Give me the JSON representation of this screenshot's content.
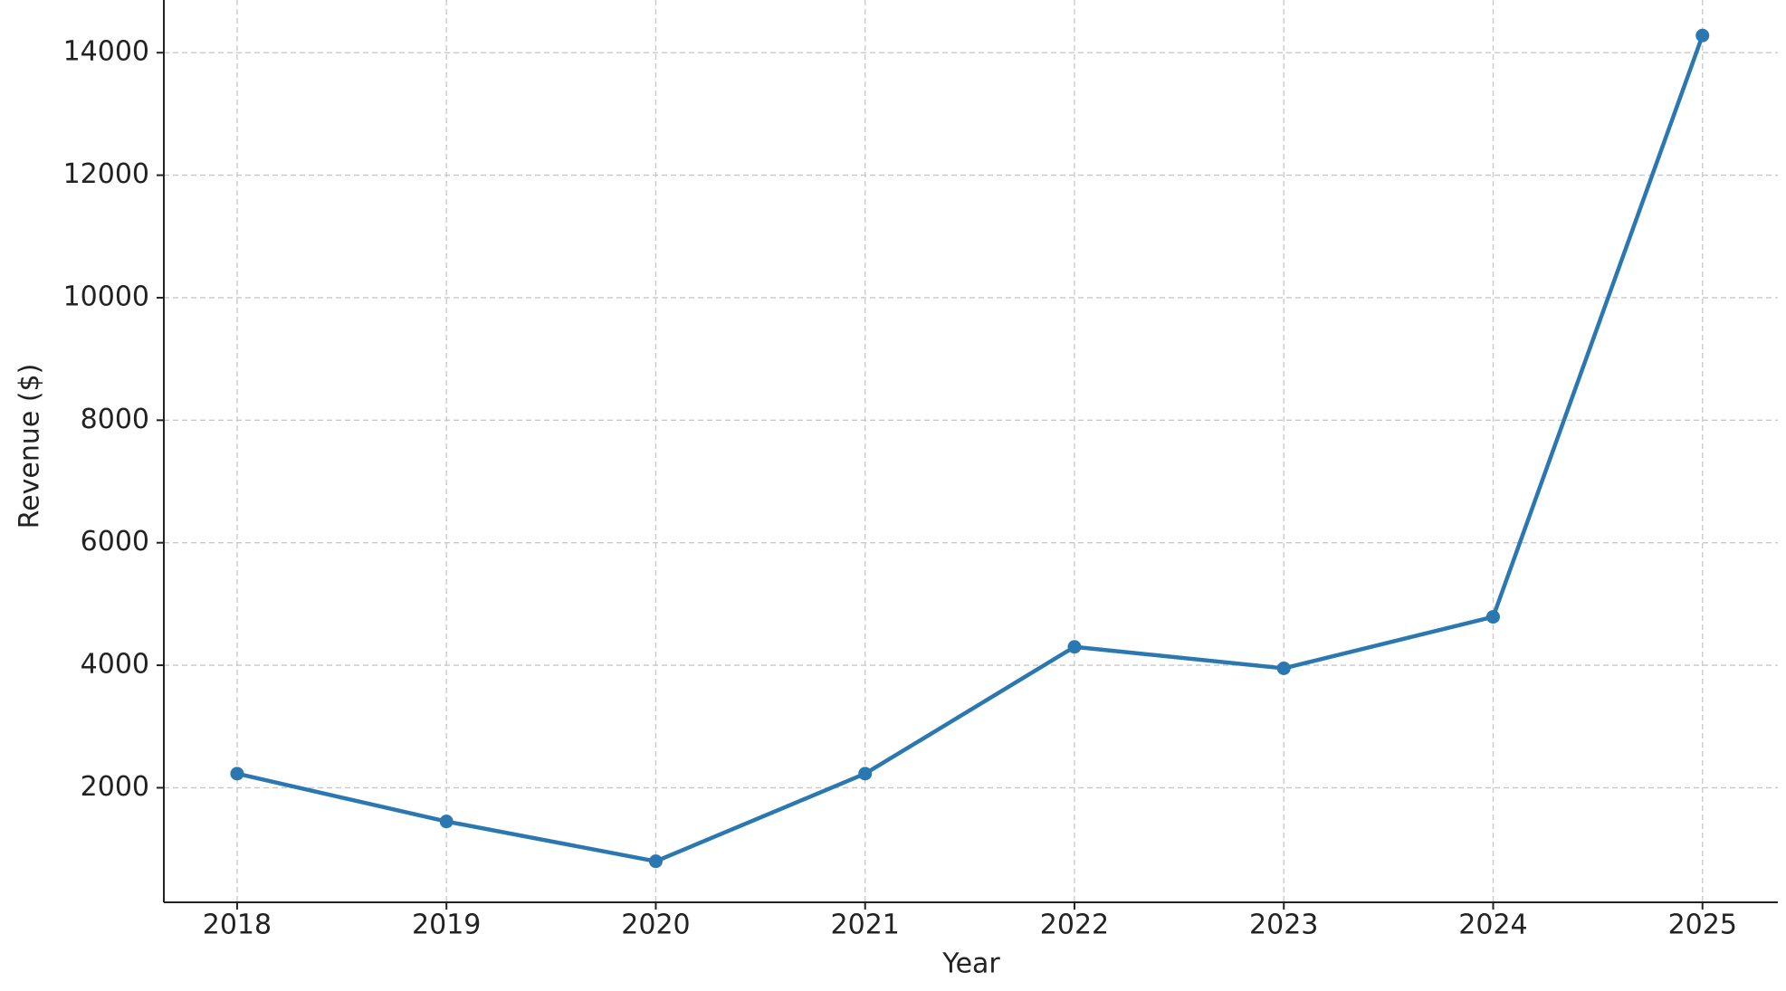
{
  "chart_data": {
    "type": "line",
    "x_label": "Year",
    "y_label": "Revenue ($)",
    "x": [
      2018,
      2019,
      2020,
      2021,
      2022,
      2023,
      2024,
      2025
    ],
    "series": [
      {
        "name": "Revenue",
        "color": "#2b78b0",
        "values": [
          2230,
          1450,
          800,
          2230,
          4300,
          3950,
          4790,
          14280
        ]
      }
    ],
    "xlim": [
      2017.65,
      2025.36
    ],
    "xticks": [
      2018,
      2019,
      2020,
      2021,
      2022,
      2023,
      2024,
      2025
    ],
    "ylim": [
      130,
      14860
    ],
    "yticks": [
      2000,
      4000,
      6000,
      8000,
      10000,
      12000,
      14000
    ],
    "grid": true
  }
}
